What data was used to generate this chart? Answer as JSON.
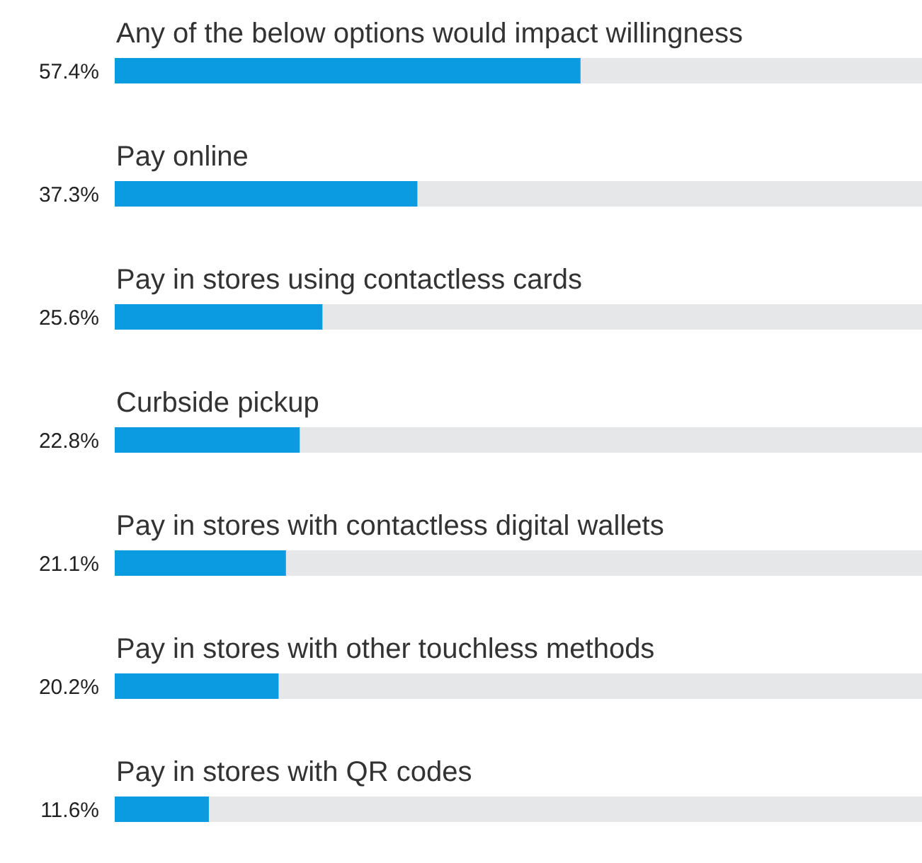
{
  "chart_data": {
    "type": "bar",
    "orientation": "horizontal",
    "categories": [
      "Any of the below options would impact willingness",
      "Pay online",
      "Pay in stores using contactless cards",
      "Curbside pickup",
      "Pay in stores with contactless digital wallets",
      "Pay in stores with other touchless methods",
      "Pay in stores with QR codes"
    ],
    "values": [
      57.4,
      37.3,
      25.6,
      22.8,
      21.1,
      20.2,
      11.6
    ],
    "value_labels": [
      "57.4%",
      "37.3%",
      "25.6%",
      "22.8%",
      "21.1%",
      "20.2%",
      "11.6%"
    ],
    "color": "#0a9be0",
    "xlim": [
      0,
      100
    ]
  }
}
